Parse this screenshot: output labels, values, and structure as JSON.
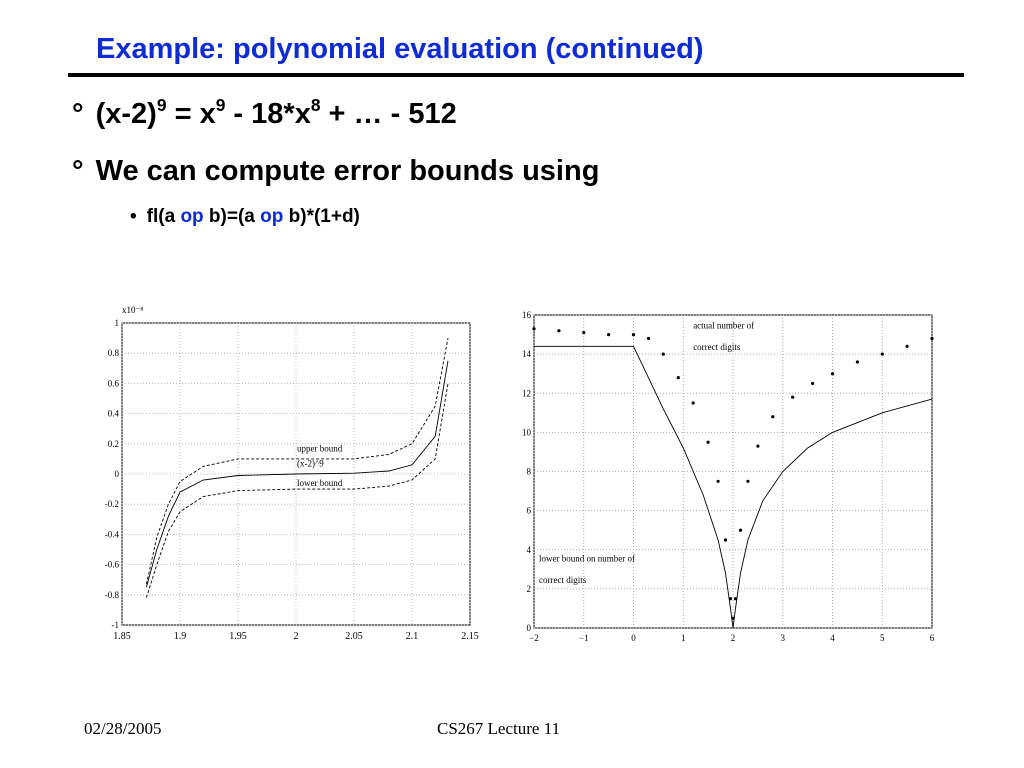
{
  "slide": {
    "title": "Example: polynomial evaluation (continued)",
    "bullets": [
      {
        "marker": "°",
        "parts": {
          "a": "(x-2)",
          "a_sup": "9",
          "b": " = x",
          "b_sup": "9",
          "c": " - 18*x",
          "c_sup": "8",
          "d": " + … - 512"
        }
      },
      {
        "marker": "°",
        "text": "We can compute error bounds using"
      }
    ],
    "sub_bullet": {
      "marker": "•",
      "p1": "fl(a ",
      "op1": "op",
      "p2": " b)=(a ",
      "op2": "op",
      "p3": " b)*(1+d)"
    },
    "accent_color": "#0e2bd4"
  },
  "chart_data": [
    {
      "type": "line",
      "multiplier_label": "x10⁻⁸",
      "x_ticks": [
        "1.85",
        "1.9",
        "1.95",
        "2",
        "2.05",
        "2.1",
        "2.15"
      ],
      "y_ticks": [
        "1",
        "0.8",
        "0.6",
        "0.4",
        "0.2",
        "0",
        "-0.2",
        "-0.4",
        "-0.6",
        "-0.8",
        "-1"
      ],
      "xlim": [
        1.85,
        2.15
      ],
      "ylim": [
        -1,
        1
      ],
      "grid": true,
      "series": [
        {
          "name": "upper bound",
          "style": "dashed",
          "x": [
            1.871,
            1.88,
            1.89,
            1.9,
            1.92,
            1.95,
            2.0,
            2.05,
            2.08,
            2.1,
            2.12,
            2.131
          ],
          "y": [
            -0.73,
            -0.42,
            -0.2,
            -0.05,
            0.05,
            0.1,
            0.1,
            0.1,
            0.13,
            0.2,
            0.45,
            0.9
          ]
        },
        {
          "name": "(x-2)^9",
          "style": "solid",
          "x": [
            1.871,
            1.88,
            1.89,
            1.9,
            1.92,
            1.95,
            2.0,
            2.05,
            2.08,
            2.1,
            2.12,
            2.131
          ],
          "y": [
            -0.75,
            -0.5,
            -0.28,
            -0.12,
            -0.04,
            -0.01,
            0.0,
            0.005,
            0.02,
            0.06,
            0.25,
            0.75
          ]
        },
        {
          "name": "lower bound",
          "style": "dashed",
          "x": [
            1.871,
            1.88,
            1.89,
            1.9,
            1.92,
            1.95,
            2.0,
            2.05,
            2.08,
            2.1,
            2.12,
            2.131
          ],
          "y": [
            -0.82,
            -0.6,
            -0.38,
            -0.25,
            -0.15,
            -0.11,
            -0.1,
            -0.1,
            -0.08,
            -0.04,
            0.1,
            0.6
          ]
        }
      ]
    },
    {
      "type": "scatter",
      "x_ticks": [
        "−2",
        "−1",
        "0",
        "1",
        "2",
        "3",
        "4",
        "5",
        "6"
      ],
      "y_ticks": [
        "16",
        "14",
        "12",
        "10",
        "8",
        "6",
        "4",
        "2",
        "0"
      ],
      "xlim": [
        -2,
        6
      ],
      "ylim": [
        0,
        16
      ],
      "grid": true,
      "annotations": [
        "actual number of",
        "correct digits",
        "lower bound on number of",
        "correct digits"
      ],
      "series": [
        {
          "name": "actual number of correct digits",
          "x": [
            -2,
            -1.5,
            -1,
            -0.5,
            0,
            0.3,
            0.6,
            0.9,
            1.2,
            1.5,
            1.7,
            1.85,
            1.95,
            2.0,
            2.05,
            2.15,
            2.3,
            2.5,
            2.8,
            3.2,
            3.6,
            4.0,
            4.5,
            5.0,
            5.5,
            6.0
          ],
          "y": [
            15.3,
            15.2,
            15.1,
            15.0,
            15.0,
            14.8,
            14.0,
            12.8,
            11.5,
            9.5,
            7.5,
            4.5,
            1.5,
            0.5,
            1.5,
            5.0,
            7.5,
            9.3,
            10.8,
            11.8,
            12.5,
            13.0,
            13.6,
            14.0,
            14.4,
            14.8
          ]
        },
        {
          "name": "lower bound on number of correct digits",
          "x": [
            -2,
            -1,
            0,
            0.3,
            0.6,
            1.0,
            1.4,
            1.7,
            1.85,
            1.95,
            2.0,
            2.05,
            2.15,
            2.3,
            2.6,
            3.0,
            3.5,
            4.0,
            5.0,
            6.0
          ],
          "y": [
            14.4,
            14.4,
            14.4,
            12.8,
            11.2,
            9.2,
            6.8,
            4.5,
            2.8,
            1.0,
            0.0,
            1.0,
            2.8,
            4.5,
            6.5,
            8.0,
            9.2,
            10.0,
            11.0,
            11.7
          ]
        }
      ]
    }
  ],
  "footer": {
    "date": "02/28/2005",
    "lecture": "CS267 Lecture 11"
  }
}
